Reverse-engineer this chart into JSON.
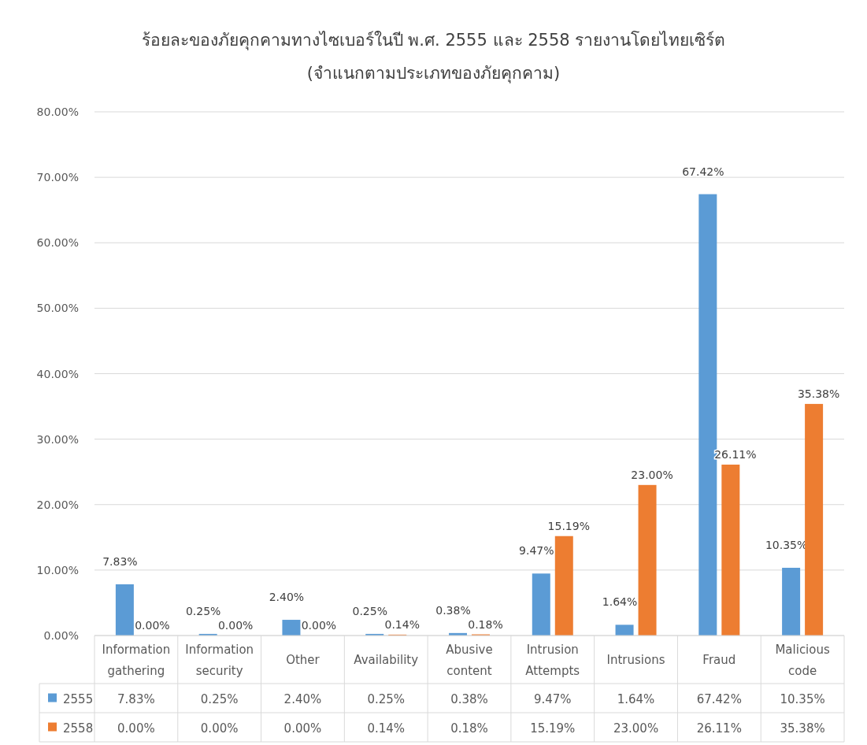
{
  "chart_data": {
    "type": "bar",
    "title": "ร้อยละของภัยคุกคามทางไซเบอร์ในปี พ.ศ. 2555 และ 2558 รายงานโดยไทยเซิร์ต",
    "subtitle": "(จำแนกตามประเภทของภัยคุกคาม)",
    "categories": [
      "Information gathering",
      "Information security",
      "Other",
      "Availability",
      "Abusive content",
      "Intrusion Attempts",
      "Intrusions",
      "Fraud",
      "Malicious code"
    ],
    "series": [
      {
        "name": "2555",
        "color": "#5b9bd5",
        "values": [
          7.83,
          0.25,
          2.4,
          0.25,
          0.38,
          9.47,
          1.64,
          67.42,
          10.35
        ],
        "value_labels": [
          "7.83%",
          "0.25%",
          "2.40%",
          "0.25%",
          "0.38%",
          "9.47%",
          "1.64%",
          "67.42%",
          "10.35%"
        ]
      },
      {
        "name": "2558",
        "color": "#ed7d31",
        "values": [
          0.0,
          0.0,
          0.0,
          0.14,
          0.18,
          15.19,
          23.0,
          26.11,
          35.38
        ],
        "value_labels": [
          "0.00%",
          "0.00%",
          "0.00%",
          "0.14%",
          "0.18%",
          "15.19%",
          "23.00%",
          "26.11%",
          "35.38%"
        ]
      }
    ],
    "ylim": [
      0,
      80
    ],
    "yticks": [
      {
        "value": 0,
        "label": "0.00%"
      },
      {
        "value": 10,
        "label": "10.00%"
      },
      {
        "value": 20,
        "label": "20.00%"
      },
      {
        "value": 30,
        "label": "30.00%"
      },
      {
        "value": 40,
        "label": "40.00%"
      },
      {
        "value": 50,
        "label": "50.00%"
      },
      {
        "value": 60,
        "label": "60.00%"
      },
      {
        "value": 70,
        "label": "70.00%"
      },
      {
        "value": 80,
        "label": "80.00%"
      }
    ],
    "grid": "y",
    "legend": "bottom"
  }
}
